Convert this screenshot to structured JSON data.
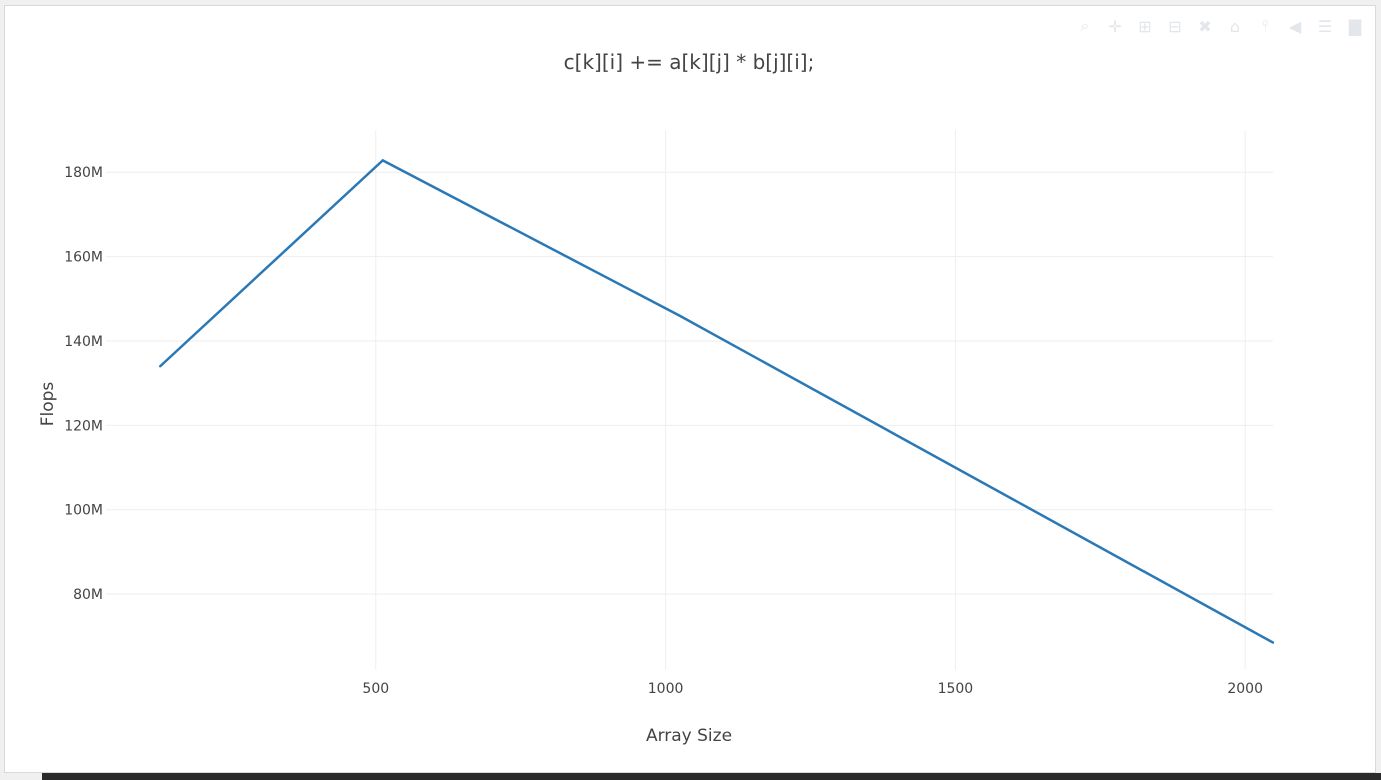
{
  "colors": {
    "line": "#2a78b5",
    "grid": "#eeeeee",
    "text": "#444444",
    "modebar": "#e3e6ea"
  },
  "modebar": {
    "icons": [
      "zoom-icon",
      "pan-icon",
      "zoom-in-icon",
      "zoom-out-icon",
      "autoscale-icon",
      "reset-axes-icon",
      "spike-lines-icon",
      "hover-closest-icon",
      "hover-compare-icon",
      "plotly-logo-icon"
    ]
  },
  "chart_data": {
    "type": "line",
    "title": "c[k][i] += a[k][j] * b[j][i];",
    "xlabel": "Array Size",
    "ylabel": "Flops",
    "x": [
      128,
      512,
      1024,
      2048
    ],
    "series": [
      {
        "values": [
          134000000,
          182800000,
          146000000,
          68500000
        ]
      }
    ],
    "xlim": [
      0,
      2048
    ],
    "ylim": [
      62000000,
      190000000
    ],
    "xticks": [
      {
        "value": 500,
        "label": "500"
      },
      {
        "value": 1000,
        "label": "1000"
      },
      {
        "value": 1500,
        "label": "1500"
      },
      {
        "value": 2000,
        "label": "2000"
      }
    ],
    "yticks": [
      {
        "value": 80000000,
        "label": "80M"
      },
      {
        "value": 100000000,
        "label": "100M"
      },
      {
        "value": 120000000,
        "label": "120M"
      },
      {
        "value": 140000000,
        "label": "140M"
      },
      {
        "value": 160000000,
        "label": "160M"
      },
      {
        "value": 180000000,
        "label": "180M"
      }
    ],
    "grid": true,
    "legend": "none"
  }
}
